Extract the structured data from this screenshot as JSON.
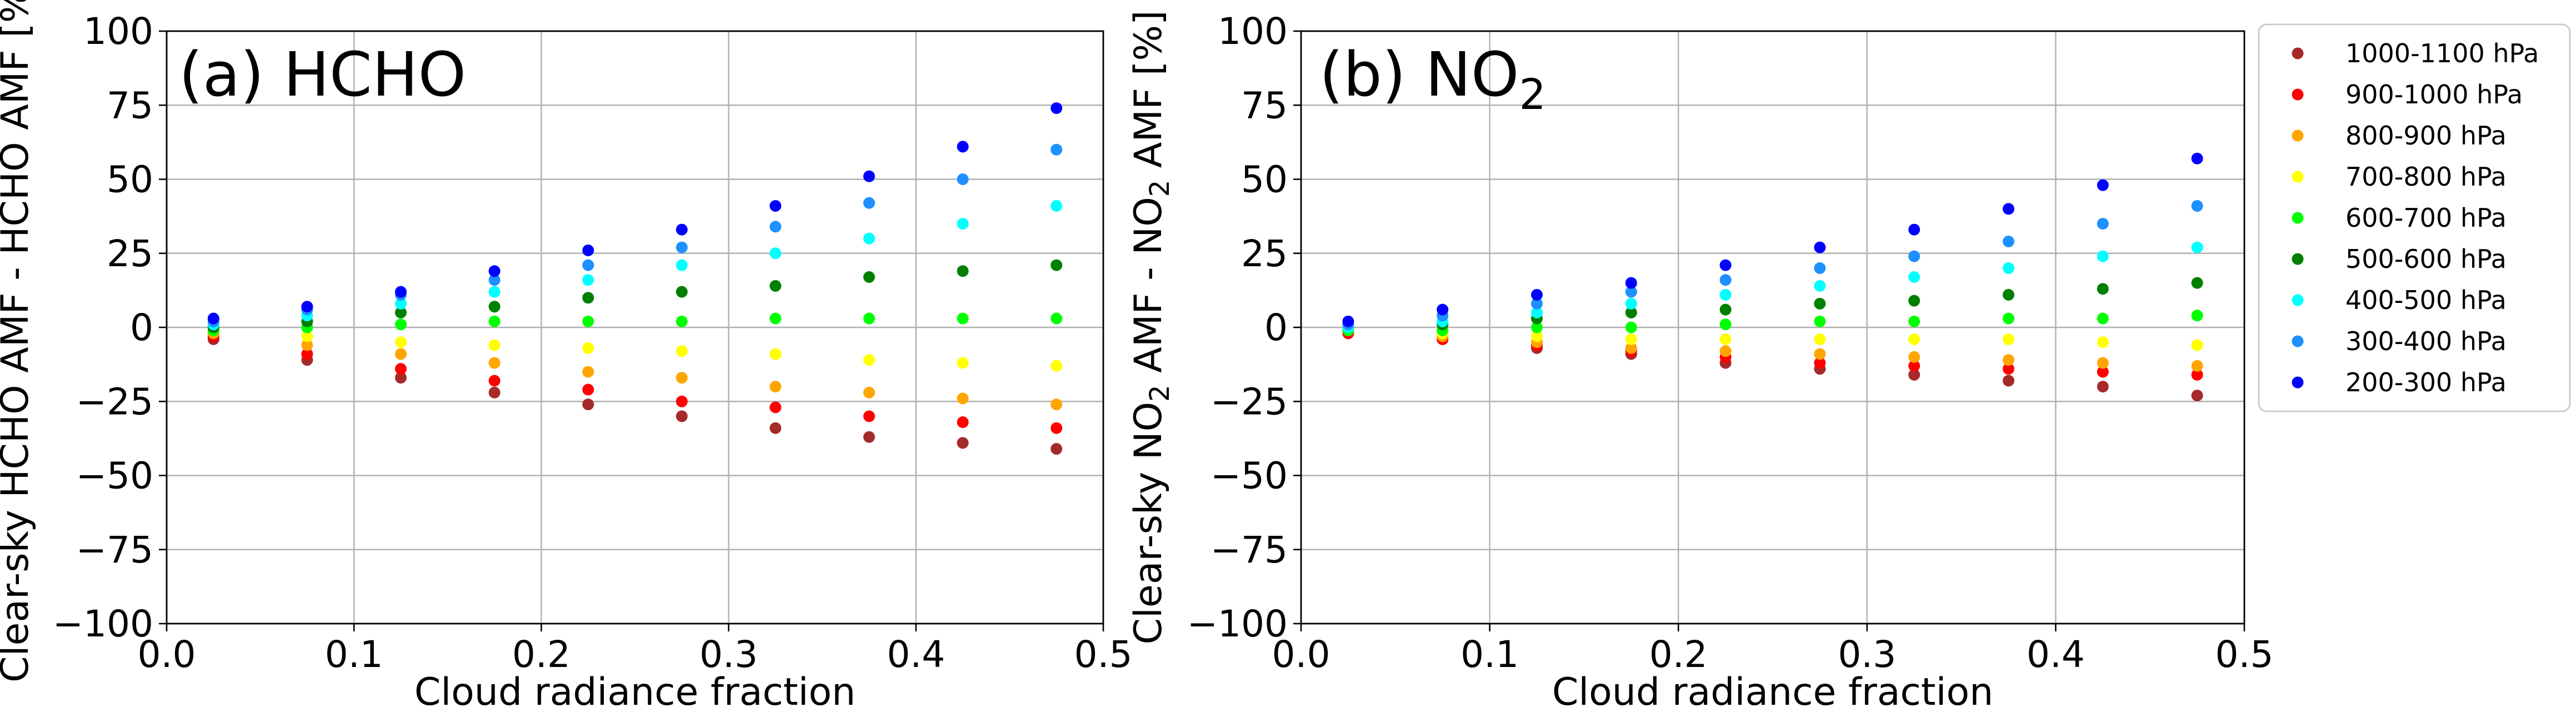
{
  "chart_data": [
    {
      "type": "scatter",
      "title_main": "(a) HCHO",
      "title_sub": "",
      "xlabel": "Cloud radiance fraction",
      "ylabel_parts": [
        {
          "text": "Clear-sky HCHO AMF - HCHO AMF [%]",
          "sub": false
        }
      ],
      "xlim": [
        0.0,
        0.5
      ],
      "ylim": [
        -100,
        100
      ],
      "xticks": [
        0.0,
        0.1,
        0.2,
        0.3,
        0.4,
        0.5
      ],
      "xtick_labels": [
        "0.0",
        "0.1",
        "0.2",
        "0.3",
        "0.4",
        "0.5"
      ],
      "yticks": [
        -100,
        -75,
        -50,
        -25,
        0,
        25,
        50,
        75,
        100
      ],
      "ytick_labels": [
        "−100",
        "−75",
        "−50",
        "−25",
        "0",
        "25",
        "50",
        "75",
        "100"
      ],
      "grid": true,
      "x": [
        0.025,
        0.075,
        0.125,
        0.175,
        0.225,
        0.275,
        0.325,
        0.375,
        0.425,
        0.475
      ],
      "series": [
        {
          "name": "1000-1100 hPa",
          "color": "#a52a2a",
          "values": [
            -4,
            -11,
            -17,
            -22,
            -26,
            -30,
            -34,
            -37,
            -39,
            -41
          ]
        },
        {
          "name": "900-1000 hPa",
          "color": "#ff0000",
          "values": [
            -3,
            -9,
            -14,
            -18,
            -21,
            -25,
            -27,
            -30,
            -32,
            -34
          ]
        },
        {
          "name": "800-900 hPa",
          "color": "#ffa500",
          "values": [
            -2,
            -6,
            -9,
            -12,
            -15,
            -17,
            -20,
            -22,
            -24,
            -26
          ]
        },
        {
          "name": "700-800 hPa",
          "color": "#ffff00",
          "values": [
            -1,
            -3,
            -5,
            -6,
            -7,
            -8,
            -9,
            -11,
            -12,
            -13
          ]
        },
        {
          "name": "600-700 hPa",
          "color": "#00ff00",
          "values": [
            -1,
            0,
            1,
            2,
            2,
            2,
            3,
            3,
            3,
            3
          ]
        },
        {
          "name": "500-600 hPa",
          "color": "#008000",
          "values": [
            0,
            2,
            5,
            7,
            10,
            12,
            14,
            17,
            19,
            21
          ]
        },
        {
          "name": "400-500 hPa",
          "color": "#00ffff",
          "values": [
            1,
            4,
            8,
            12,
            16,
            21,
            25,
            30,
            35,
            41
          ]
        },
        {
          "name": "300-400 hPa",
          "color": "#1e90ff",
          "values": [
            2,
            6,
            11,
            16,
            21,
            27,
            34,
            42,
            50,
            60
          ]
        },
        {
          "name": "200-300 hPa",
          "color": "#0000ff",
          "values": [
            3,
            7,
            12,
            19,
            26,
            33,
            41,
            51,
            61,
            74
          ]
        }
      ]
    },
    {
      "type": "scatter",
      "title_main": "(b) NO",
      "title_sub": "2",
      "xlabel": "Cloud radiance fraction",
      "ylabel_parts": [
        {
          "text": "Clear-sky NO",
          "sub": false
        },
        {
          "text": "2",
          "sub": true
        },
        {
          "text": " AMF - NO",
          "sub": false
        },
        {
          "text": "2",
          "sub": true
        },
        {
          "text": " AMF [%]",
          "sub": false
        }
      ],
      "xlim": [
        0.0,
        0.5
      ],
      "ylim": [
        -100,
        100
      ],
      "xticks": [
        0.0,
        0.1,
        0.2,
        0.3,
        0.4,
        0.5
      ],
      "xtick_labels": [
        "0.0",
        "0.1",
        "0.2",
        "0.3",
        "0.4",
        "0.5"
      ],
      "yticks": [
        -100,
        -75,
        -50,
        -25,
        0,
        25,
        50,
        75,
        100
      ],
      "ytick_labels": [
        "−100",
        "−75",
        "−50",
        "−25",
        "0",
        "25",
        "50",
        "75",
        "100"
      ],
      "grid": true,
      "x": [
        0.025,
        0.075,
        0.125,
        0.175,
        0.225,
        0.275,
        0.325,
        0.375,
        0.425,
        0.475
      ],
      "series": [
        {
          "name": "1000-1100 hPa",
          "color": "#a52a2a",
          "values": [
            -2,
            -4,
            -7,
            -9,
            -12,
            -14,
            -16,
            -18,
            -20,
            -23
          ]
        },
        {
          "name": "900-1000 hPa",
          "color": "#ff0000",
          "values": [
            -2,
            -4,
            -6,
            -8,
            -10,
            -12,
            -13,
            -14,
            -15,
            -16
          ]
        },
        {
          "name": "800-900 hPa",
          "color": "#ffa500",
          "values": [
            -1,
            -3,
            -5,
            -7,
            -8,
            -9,
            -10,
            -11,
            -12,
            -13
          ]
        },
        {
          "name": "700-800 hPa",
          "color": "#ffff00",
          "values": [
            -1,
            -2,
            -3,
            -4,
            -4,
            -4,
            -4,
            -4,
            -5,
            -6
          ]
        },
        {
          "name": "600-700 hPa",
          "color": "#00ff00",
          "values": [
            -1,
            -1,
            0,
            0,
            1,
            2,
            2,
            3,
            3,
            4
          ]
        },
        {
          "name": "500-600 hPa",
          "color": "#008000",
          "values": [
            0,
            1,
            3,
            5,
            6,
            8,
            9,
            11,
            13,
            15
          ]
        },
        {
          "name": "400-500 hPa",
          "color": "#00ffff",
          "values": [
            0,
            2,
            5,
            8,
            11,
            14,
            17,
            20,
            24,
            27
          ]
        },
        {
          "name": "300-400 hPa",
          "color": "#1e90ff",
          "values": [
            1,
            4,
            8,
            12,
            16,
            20,
            24,
            29,
            35,
            41
          ]
        },
        {
          "name": "200-300 hPa",
          "color": "#0000ff",
          "values": [
            2,
            6,
            11,
            15,
            21,
            27,
            33,
            40,
            48,
            57
          ]
        }
      ]
    }
  ],
  "legend": {
    "placement": "right",
    "items": [
      {
        "label": "1000-1100 hPa",
        "color": "#a52a2a"
      },
      {
        "label": "900-1000 hPa",
        "color": "#ff0000"
      },
      {
        "label": "800-900 hPa",
        "color": "#ffa500"
      },
      {
        "label": "700-800 hPa",
        "color": "#ffff00"
      },
      {
        "label": "600-700 hPa",
        "color": "#00ff00"
      },
      {
        "label": "500-600 hPa",
        "color": "#008000"
      },
      {
        "label": "400-500 hPa",
        "color": "#00ffff"
      },
      {
        "label": "300-400 hPa",
        "color": "#1e90ff"
      },
      {
        "label": "200-300 hPa",
        "color": "#0000ff"
      }
    ]
  }
}
